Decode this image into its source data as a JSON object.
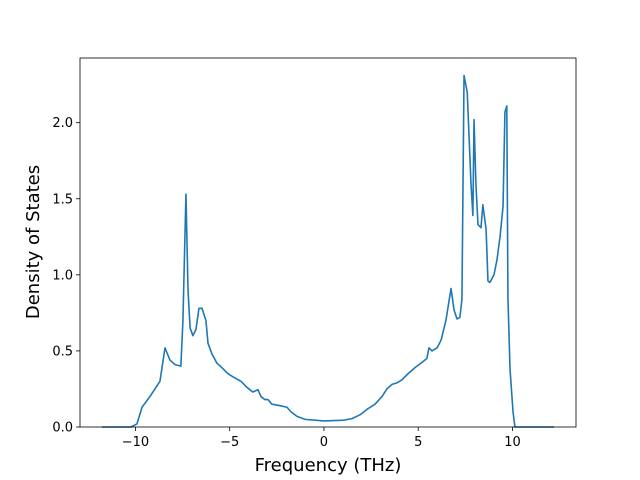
{
  "chart_data": {
    "type": "line",
    "xlabel": "Frequency (THz)",
    "ylabel": "Density of States",
    "xlim": [
      -12.94,
      13.37
    ],
    "ylim": [
      0,
      2.425
    ],
    "xticks": [
      {
        "value": -10,
        "label": "−10"
      },
      {
        "value": -5,
        "label": "−5"
      },
      0,
      5,
      10
    ],
    "yticks": [
      {
        "value": 0,
        "label": "0.0"
      },
      0.5,
      {
        "value": 1,
        "label": "1.0"
      },
      1.5,
      {
        "value": 2,
        "label": "2.0"
      }
    ],
    "grid": false,
    "series": [
      {
        "color": "#1f77b4",
        "x": [
          -11.78,
          -10.24,
          -9.92,
          -9.65,
          -9.23,
          -8.7,
          -8.43,
          -8.17,
          -7.9,
          -7.59,
          -7.48,
          -7.32,
          -7.21,
          -7.1,
          -6.95,
          -6.79,
          -6.63,
          -6.47,
          -6.26,
          -6.15,
          -5.94,
          -5.68,
          -5.41,
          -5.09,
          -4.83,
          -4.4,
          -4.08,
          -3.77,
          -3.5,
          -3.34,
          -3.13,
          -2.97,
          -2.76,
          -2.33,
          -1.96,
          -1.75,
          -1.43,
          -1.0,
          0,
          1.06,
          1.49,
          1.91,
          2.33,
          2.71,
          3.08,
          3.34,
          3.61,
          3.87,
          4.14,
          4.46,
          4.83,
          5.15,
          5.46,
          5.57,
          5.73,
          6.0,
          6.21,
          6.47,
          6.74,
          6.9,
          7.06,
          7.21,
          7.32,
          7.43,
          7.6,
          7.8,
          7.9,
          7.96,
          8.06,
          8.17,
          8.33,
          8.43,
          8.6,
          8.7,
          8.8,
          9.02,
          9.18,
          9.34,
          9.5,
          9.6,
          9.7,
          9.76,
          9.87,
          10.03,
          10.13,
          12.2
        ],
        "values": [
          0,
          0,
          0.02,
          0.13,
          0.2,
          0.3,
          0.52,
          0.44,
          0.41,
          0.4,
          0.7,
          1.53,
          0.9,
          0.65,
          0.6,
          0.64,
          0.78,
          0.78,
          0.7,
          0.55,
          0.48,
          0.42,
          0.39,
          0.35,
          0.33,
          0.3,
          0.26,
          0.23,
          0.245,
          0.2,
          0.18,
          0.18,
          0.15,
          0.14,
          0.13,
          0.1,
          0.07,
          0.05,
          0.04,
          0.045,
          0.055,
          0.08,
          0.12,
          0.15,
          0.2,
          0.25,
          0.28,
          0.29,
          0.31,
          0.35,
          0.39,
          0.42,
          0.45,
          0.52,
          0.5,
          0.52,
          0.57,
          0.7,
          0.91,
          0.77,
          0.71,
          0.72,
          0.84,
          2.31,
          2.2,
          1.6,
          1.39,
          2.02,
          1.6,
          1.33,
          1.31,
          1.46,
          1.3,
          0.96,
          0.95,
          1.0,
          1.1,
          1.25,
          1.45,
          2.07,
          2.11,
          0.85,
          0.38,
          0.1,
          0,
          0
        ]
      }
    ]
  }
}
